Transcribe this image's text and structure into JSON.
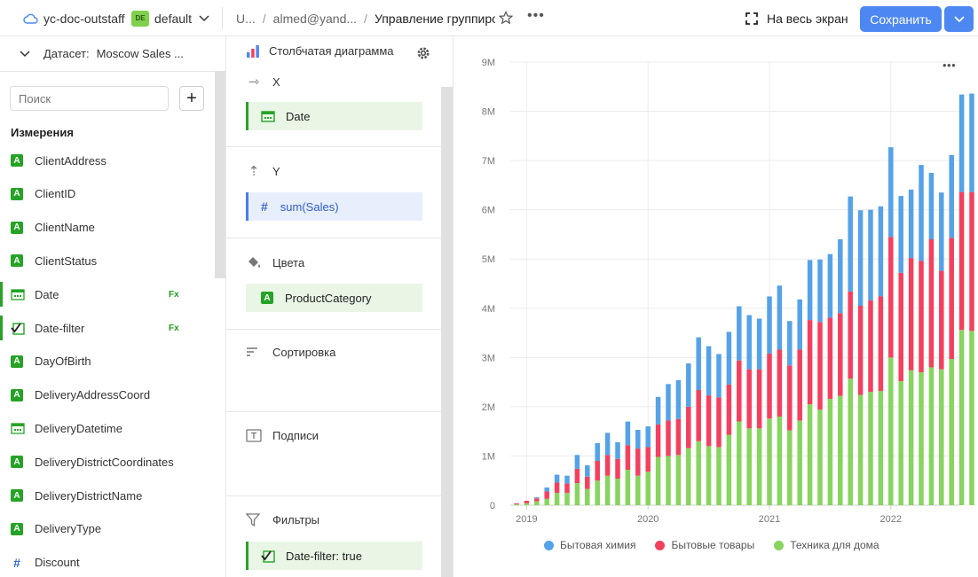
{
  "topbar": {
    "workspace": "yc-doc-outstaff",
    "folder_badge": "DE",
    "folder": "default",
    "crumb_1": "U...",
    "crumb_2": "almed@yand...",
    "crumb_3": "Управление группирo",
    "fullscreen_label": "На весь экран",
    "save_label": "Сохранить"
  },
  "left_panel": {
    "dataset_prefix": "Датасет:",
    "dataset_name": "Moscow Sales ...",
    "search_placeholder": "Поиск",
    "add_label": "+",
    "section_title": "Измерения",
    "fields": [
      {
        "name": "ClientAddress",
        "type": "A"
      },
      {
        "name": "ClientID",
        "type": "A"
      },
      {
        "name": "ClientName",
        "type": "A"
      },
      {
        "name": "ClientStatus",
        "type": "A"
      },
      {
        "name": "Date",
        "type": "date",
        "fx": "Fx"
      },
      {
        "name": "Date-filter",
        "type": "filter",
        "fx": "Fx"
      },
      {
        "name": "DayOfBirth",
        "type": "A"
      },
      {
        "name": "DeliveryAddressCoord",
        "type": "A"
      },
      {
        "name": "DeliveryDatetime",
        "type": "date"
      },
      {
        "name": "DeliveryDistrictCoordinates",
        "type": "A"
      },
      {
        "name": "DeliveryDistrictName",
        "type": "A"
      },
      {
        "name": "DeliveryType",
        "type": "A"
      },
      {
        "name": "Discount",
        "type": "#"
      }
    ]
  },
  "mid_panel": {
    "chart_type": "Столбчатая диаграмма",
    "x_label": "X",
    "x_field": "Date",
    "y_label": "Y",
    "y_field": "sum(Sales)",
    "colors_label": "Цвета",
    "colors_field": "ProductCategory",
    "sort_label": "Сортировка",
    "labels_label": "Подписи",
    "filters_label": "Фильтры",
    "filter_field": "Date-filter: true"
  },
  "chart_data": {
    "type": "bar",
    "stacked": true,
    "title": "",
    "xlabel": "",
    "ylabel": "",
    "ylim": [
      0,
      9000000
    ],
    "y_ticks": [
      "0",
      "1M",
      "2M",
      "3M",
      "4M",
      "5M",
      "6M",
      "7M",
      "8M",
      "9M"
    ],
    "x_ticks": [
      {
        "label": "2019",
        "index": 2
      },
      {
        "label": "2020",
        "index": 14
      },
      {
        "label": "2021",
        "index": 26
      },
      {
        "label": "2022",
        "index": 38
      }
    ],
    "x": [
      "2018-11",
      "2018-12",
      "2019-01",
      "2019-02",
      "2019-03",
      "2019-04",
      "2019-05",
      "2019-06",
      "2019-07",
      "2019-08",
      "2019-09",
      "2019-10",
      "2019-11",
      "2019-12",
      "2020-01",
      "2020-02",
      "2020-03",
      "2020-04",
      "2020-05",
      "2020-06",
      "2020-07",
      "2020-08",
      "2020-09",
      "2020-10",
      "2020-11",
      "2020-12",
      "2021-01",
      "2021-02",
      "2021-03",
      "2021-04",
      "2021-05",
      "2021-06",
      "2021-07",
      "2021-08",
      "2021-09",
      "2021-10",
      "2021-11",
      "2021-12",
      "2022-01",
      "2022-02",
      "2022-03",
      "2022-04",
      "2022-05",
      "2022-06",
      "2022-07",
      "2022-08"
    ],
    "series": [
      {
        "name": "Техника для дома",
        "color": "#87d45f",
        "values": [
          20000,
          40000,
          80000,
          130000,
          250000,
          250000,
          450000,
          330000,
          500000,
          600000,
          540000,
          720000,
          600000,
          680000,
          980000,
          1000000,
          1020000,
          1160000,
          1300000,
          1200000,
          1180000,
          1430000,
          1700000,
          1560000,
          1560000,
          1760000,
          1800000,
          1520000,
          1720000,
          2050000,
          1940000,
          2160000,
          2220000,
          2570000,
          2240000,
          2300000,
          2320000,
          3000000,
          2520000,
          2740000,
          2700000,
          2800000,
          2760000,
          2970000,
          3560000,
          3540000
        ]
      },
      {
        "name": "Бытовые товары",
        "color": "#f3405f",
        "values": [
          20000,
          50000,
          60000,
          150000,
          210000,
          190000,
          290000,
          250000,
          400000,
          420000,
          400000,
          500000,
          550000,
          500000,
          660000,
          720000,
          730000,
          840000,
          1040000,
          1030000,
          1010000,
          1020000,
          1240000,
          1200000,
          1200000,
          1320000,
          1360000,
          1320000,
          1440000,
          1710000,
          1780000,
          1650000,
          1680000,
          1770000,
          1810000,
          1860000,
          1920000,
          2450000,
          2200000,
          2280000,
          2260000,
          2600000,
          2000000,
          2460000,
          2800000,
          2820000
        ]
      },
      {
        "name": "Бытовая химия",
        "color": "#55a2e8",
        "values": [
          0,
          0,
          20000,
          80000,
          160000,
          160000,
          280000,
          230000,
          360000,
          450000,
          340000,
          480000,
          380000,
          420000,
          560000,
          740000,
          790000,
          880000,
          1070000,
          1000000,
          880000,
          1070000,
          1100000,
          1100000,
          1030000,
          1160000,
          1300000,
          900000,
          1020000,
          1220000,
          1270000,
          1290000,
          1500000,
          1930000,
          1940000,
          1840000,
          1830000,
          1820000,
          1560000,
          1390000,
          1950000,
          1350000,
          1590000,
          1680000,
          1980000,
          2000000
        ]
      }
    ],
    "legend": [
      "Бытовая химия",
      "Бытовые товары",
      "Техника для дома"
    ],
    "legend_position": "bottom-center",
    "menu_label": "•••"
  }
}
